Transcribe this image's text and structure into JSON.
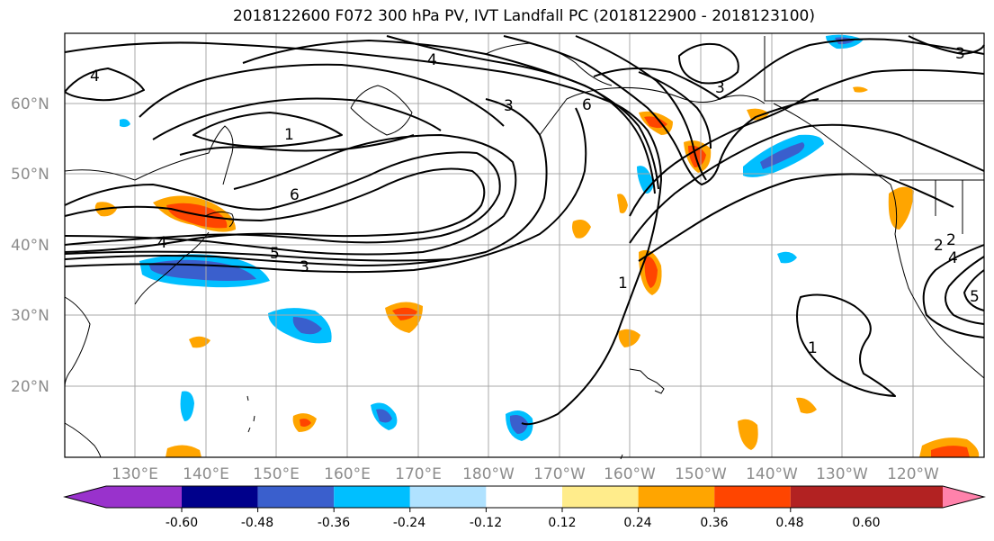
{
  "title": "2018122600 F072 300 hPa PV, IVT Landfall PC (2018122900 - 2018123100)",
  "lat_labels": [
    "60°N",
    "50°N",
    "40°N",
    "30°N",
    "20°N"
  ],
  "lon_labels": [
    "130°E",
    "140°E",
    "150°E",
    "160°E",
    "170°E",
    "180°W",
    "170°W",
    "160°W",
    "150°W",
    "140°W",
    "130°W",
    "120°W"
  ],
  "contour_labels": [
    "4",
    "4",
    "3",
    "6",
    "1",
    "6",
    "4",
    "5",
    "3",
    "3",
    "1",
    "1",
    "2",
    "2",
    "4",
    "5",
    "3"
  ],
  "colorbar": {
    "tick_labels": [
      "-0.60",
      "-0.48",
      "-0.36",
      "-0.24",
      "-0.12",
      "0.12",
      "0.24",
      "0.36",
      "0.48",
      "0.60"
    ],
    "colors": [
      "#9932cc",
      "#00008b",
      "#3a5fcd",
      "#00bfff",
      "#b0e2ff",
      "#ffffff",
      "#ffec8b",
      "#ffa500",
      "#ff4500",
      "#b22222",
      "#ff82ab"
    ]
  },
  "colors": {
    "grid": "#a9a9a9",
    "axis_label": "#8c8c8c"
  }
}
